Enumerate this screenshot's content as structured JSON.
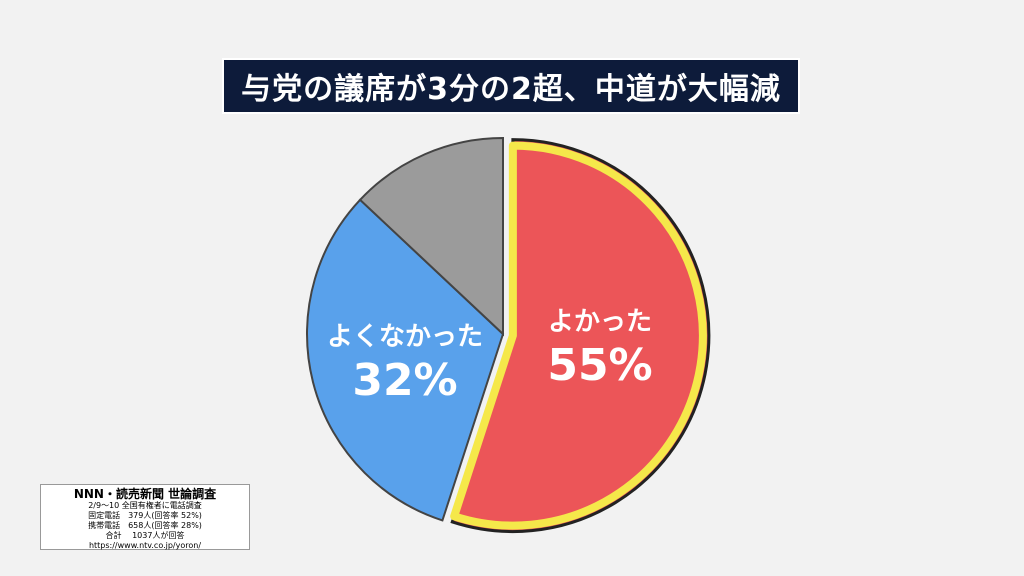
{
  "title": "与党の議席が3分の2超、中道が大幅減",
  "chart_data": {
    "type": "pie",
    "categories": [
      "よかった",
      "よくなかった",
      ""
    ],
    "values": [
      55,
      32,
      13
    ],
    "labels": [
      "55%",
      "32%",
      ""
    ],
    "colors": [
      "#ec5558",
      "#59a1eb",
      "#9b9b9b"
    ],
    "highlight_color": "#f5e84a",
    "start": "12 o'clock",
    "direction": "clockwise"
  },
  "source": {
    "title": "NNN・読売新聞 世論調査",
    "lines": [
      "2/9〜10 全国有権者に電話調査",
      "固定電話　379人(回答率 52%)",
      "携帯電話　658人(回答率 28%)",
      "合計　 1037人が回答",
      "https://www.ntv.co.jp/yoron/"
    ]
  }
}
